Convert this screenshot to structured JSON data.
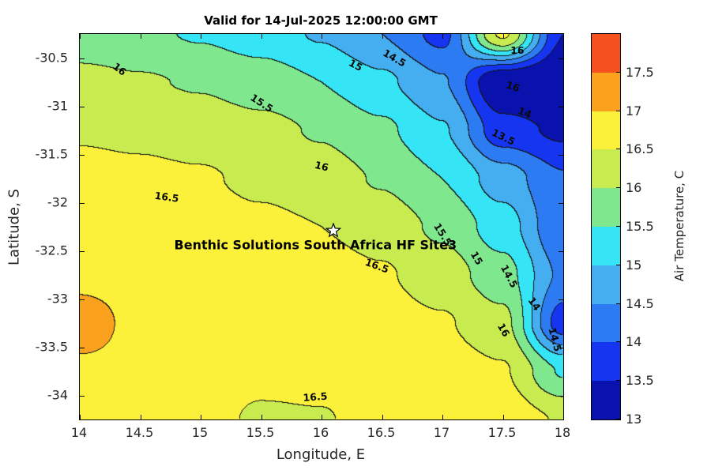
{
  "chart_data": {
    "type": "filled_contour",
    "title": "Valid for 14-Jul-2025 12:00:00 GMT",
    "xlabel": "Longitude, E",
    "ylabel": "Latitude, S",
    "colorbar_label": "Air Temperature, C",
    "xlim": [
      14,
      18
    ],
    "ylim": [
      -34.25,
      -30.25
    ],
    "xticks": [
      14,
      14.5,
      15,
      15.5,
      16,
      16.5,
      17,
      17.5,
      18
    ],
    "xtick_labels": [
      "14",
      "14.5",
      "15",
      "15.5",
      "16",
      "16.5",
      "17",
      "17.5",
      "18"
    ],
    "yticks": [
      -30.5,
      -31,
      -31.5,
      -32,
      -32.5,
      -33,
      -33.5,
      -34
    ],
    "ytick_labels": [
      "-30.5",
      "-31",
      "-31.5",
      "-32",
      "-32.5",
      "-33",
      "-33.5",
      "-34"
    ],
    "contour_interval": 0.5,
    "color_min": 13,
    "band_colors": [
      "#0a12ad",
      "#1535f0",
      "#2d7bf2",
      "#45aef0",
      "#35e5f5",
      "#7fe88e",
      "#c8ec50",
      "#fcf13a",
      "#faa21e",
      "#f4511e"
    ],
    "colorbar_tick_values": [
      13,
      13.5,
      14,
      14.5,
      15,
      15.5,
      16,
      16.5,
      17,
      17.5
    ],
    "colorbar_tick_labels": [
      "13",
      "13.5",
      "14",
      "14.5",
      "15",
      "15.5",
      "16",
      "16.5",
      "17",
      "17.5"
    ],
    "line_color": "#141414",
    "lons": [
      14,
      14.5,
      15,
      15.5,
      16,
      16.5,
      17,
      17.5,
      18
    ],
    "lats": [
      -30.25,
      -30.75,
      -31.25,
      -31.75,
      -32.25,
      -32.75,
      -33.25,
      -33.75,
      -34.25
    ],
    "grid": [
      [
        15.7,
        15.6,
        15.45,
        15.25,
        14.95,
        14.5,
        13.85,
        16.6,
        13.5
      ],
      [
        16.15,
        16.05,
        15.95,
        15.75,
        15.5,
        15.1,
        14.55,
        12.95,
        12.85
      ],
      [
        16.45,
        16.4,
        16.3,
        16.15,
        15.95,
        15.6,
        15.05,
        13.7,
        13.4
      ],
      [
        16.65,
        16.6,
        16.55,
        16.4,
        16.25,
        15.95,
        15.5,
        14.75,
        14.05
      ],
      [
        16.75,
        16.7,
        16.7,
        16.6,
        16.5,
        16.3,
        15.9,
        15.25,
        14.05
      ],
      [
        16.85,
        16.8,
        16.8,
        16.75,
        16.7,
        16.55,
        16.25,
        15.7,
        14.4
      ],
      [
        17.25,
        16.85,
        16.85,
        16.85,
        16.8,
        16.7,
        16.55,
        16.15,
        13.75
      ],
      [
        16.9,
        16.85,
        16.8,
        16.7,
        16.75,
        16.8,
        16.75,
        16.55,
        15.45
      ],
      [
        16.9,
        16.85,
        16.75,
        16.4,
        16.45,
        16.8,
        16.85,
        16.8,
        16.45
      ]
    ],
    "contour_labels": [
      {
        "text": "16",
        "lon": 14.33,
        "lat": -30.62,
        "rot": 38
      },
      {
        "text": "15.5",
        "lon": 15.5,
        "lat": -30.97,
        "rot": 33
      },
      {
        "text": "15",
        "lon": 16.28,
        "lat": -30.58,
        "rot": 28
      },
      {
        "text": "14.5",
        "lon": 16.6,
        "lat": -30.5,
        "rot": 30
      },
      {
        "text": "16",
        "lon": 17.62,
        "lat": -30.42,
        "rot": 0
      },
      {
        "text": "16",
        "lon": 17.58,
        "lat": -30.8,
        "rot": 18
      },
      {
        "text": "14",
        "lon": 17.68,
        "lat": -31.07,
        "rot": 22
      },
      {
        "text": "13.5",
        "lon": 17.5,
        "lat": -31.32,
        "rot": 26
      },
      {
        "text": "16",
        "lon": 16.0,
        "lat": -31.63,
        "rot": 14
      },
      {
        "text": "16.5",
        "lon": 14.72,
        "lat": -31.95,
        "rot": 8
      },
      {
        "text": "16.5",
        "lon": 16.46,
        "lat": -32.66,
        "rot": 20
      },
      {
        "text": "15.5",
        "lon": 17.0,
        "lat": -32.33,
        "rot": 58
      },
      {
        "text": "15",
        "lon": 17.28,
        "lat": -32.58,
        "rot": 60
      },
      {
        "text": "14.5",
        "lon": 17.55,
        "lat": -32.77,
        "rot": 62
      },
      {
        "text": "14",
        "lon": 17.76,
        "lat": -33.05,
        "rot": 55
      },
      {
        "text": "14.5",
        "lon": 17.93,
        "lat": -33.42,
        "rot": 75
      },
      {
        "text": "16",
        "lon": 17.5,
        "lat": -33.32,
        "rot": 60
      },
      {
        "text": "16.5",
        "lon": 15.95,
        "lat": -34.02,
        "rot": -4
      }
    ],
    "marker": {
      "lon": 16.1,
      "lat": -32.29,
      "label": "Benthic Solutions South Africa HF Site3",
      "label_lon": 15.95,
      "label_lat": -32.44
    }
  }
}
